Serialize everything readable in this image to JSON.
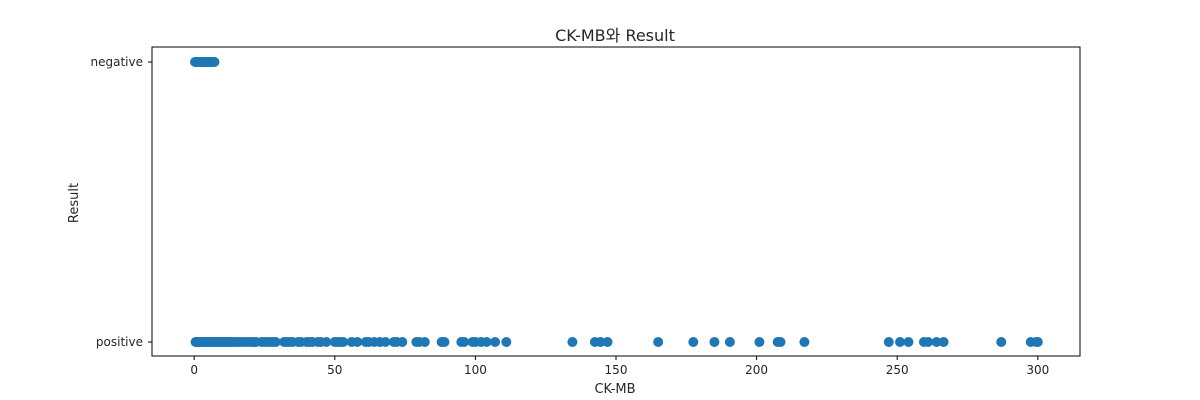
{
  "chart_data": {
    "type": "scatter",
    "title": "CK-MB와 Result",
    "xlabel": "CK-MB",
    "ylabel": "Result",
    "xlim": [
      -15,
      315
    ],
    "x_ticks": [
      0,
      50,
      100,
      150,
      200,
      250,
      300
    ],
    "y_categories": [
      "positive",
      "negative"
    ],
    "grid": false,
    "legend": "none",
    "marker_color": "#1f77b4",
    "series": [
      {
        "category": "negative",
        "x": [
          0.3,
          0.6,
          0.9,
          1.2,
          1.5,
          1.8,
          2.1,
          2.4,
          2.7,
          3.0,
          3.3,
          3.6,
          3.9,
          4.2,
          4.5,
          4.8,
          5.1,
          5.4,
          5.7,
          6.0,
          6.3,
          6.6,
          6.9,
          7.2
        ]
      },
      {
        "category": "positive",
        "x": [
          0.5,
          1,
          1.5,
          2,
          2.5,
          3,
          3.5,
          4,
          4.5,
          5,
          5.5,
          6,
          6.5,
          7,
          7.5,
          8,
          8.5,
          9,
          9.5,
          10,
          10.5,
          11,
          11.5,
          12,
          12.5,
          13,
          13.5,
          14,
          15,
          16,
          17,
          18,
          19,
          20,
          21,
          22,
          24,
          25,
          26,
          27,
          28,
          29,
          32,
          33,
          34,
          35,
          37,
          38,
          40,
          41,
          42,
          44,
          45,
          47,
          50,
          51,
          52,
          53,
          56,
          58,
          61,
          62,
          64,
          66,
          68,
          71,
          72,
          74,
          79,
          80,
          82,
          88,
          89,
          95,
          96,
          99,
          100,
          102,
          104,
          107,
          111,
          134.5,
          142.5,
          144.5,
          147,
          165,
          177.5,
          185,
          190.5,
          201,
          207.5,
          208.5,
          217,
          247,
          251,
          254,
          259.5,
          261,
          264,
          266.5,
          287,
          297.5,
          299.5,
          300
        ]
      }
    ]
  }
}
